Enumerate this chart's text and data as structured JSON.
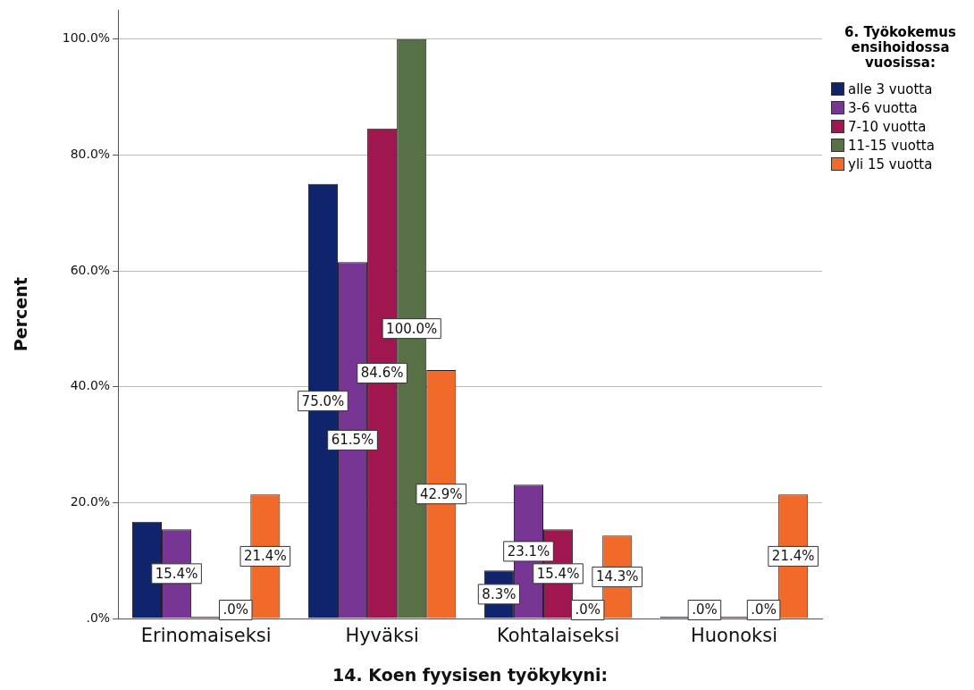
{
  "chart_data": {
    "type": "bar",
    "xlabel": "14. Koen fyysisen työkykyni:",
    "ylabel": "Percent",
    "legend_title": "6. Työkokemus ensihoidossa vuosissa:",
    "legend": "top right",
    "grid": "y",
    "categories": [
      "Erinomaiseksi",
      "Hyväksi",
      "Kohtalaiseksi",
      "Huonoksi"
    ],
    "ylim": [
      0,
      105
    ],
    "yticks": [
      {
        "value": 0,
        "label": ".0%"
      },
      {
        "value": 20,
        "label": "20.0%"
      },
      {
        "value": 40,
        "label": "40.0%"
      },
      {
        "value": 60,
        "label": "60.0%"
      },
      {
        "value": 80,
        "label": "80.0%"
      },
      {
        "value": 100,
        "label": "100.0%"
      }
    ],
    "series": [
      {
        "name": "alle 3 vuotta",
        "color": "#10246e",
        "values": [
          16.7,
          75.0,
          8.3,
          0
        ],
        "value_labels": [
          null,
          "75.0%",
          "8.3%",
          null
        ]
      },
      {
        "name": "3-6 vuotta",
        "color": "#773594",
        "values": [
          15.4,
          61.5,
          23.1,
          0
        ],
        "value_labels": [
          "15.4%",
          "61.5%",
          "23.1%",
          ".0%"
        ]
      },
      {
        "name": "7-10 vuotta",
        "color": "#a0174f",
        "values": [
          0,
          84.6,
          15.4,
          0
        ],
        "value_labels": [
          null,
          "84.6%",
          "15.4%",
          null
        ]
      },
      {
        "name": "11-15 vuotta",
        "color": "#587046",
        "values": [
          0,
          100.0,
          0,
          0
        ],
        "value_labels": [
          ".0%",
          "100.0%",
          ".0%",
          ".0%"
        ]
      },
      {
        "name": "yli 15 vuotta",
        "color": "#f26a2a",
        "values": [
          21.4,
          42.9,
          14.3,
          21.4
        ],
        "value_labels": [
          "21.4%",
          "42.9%",
          "14.3%",
          "21.4%"
        ]
      }
    ]
  }
}
